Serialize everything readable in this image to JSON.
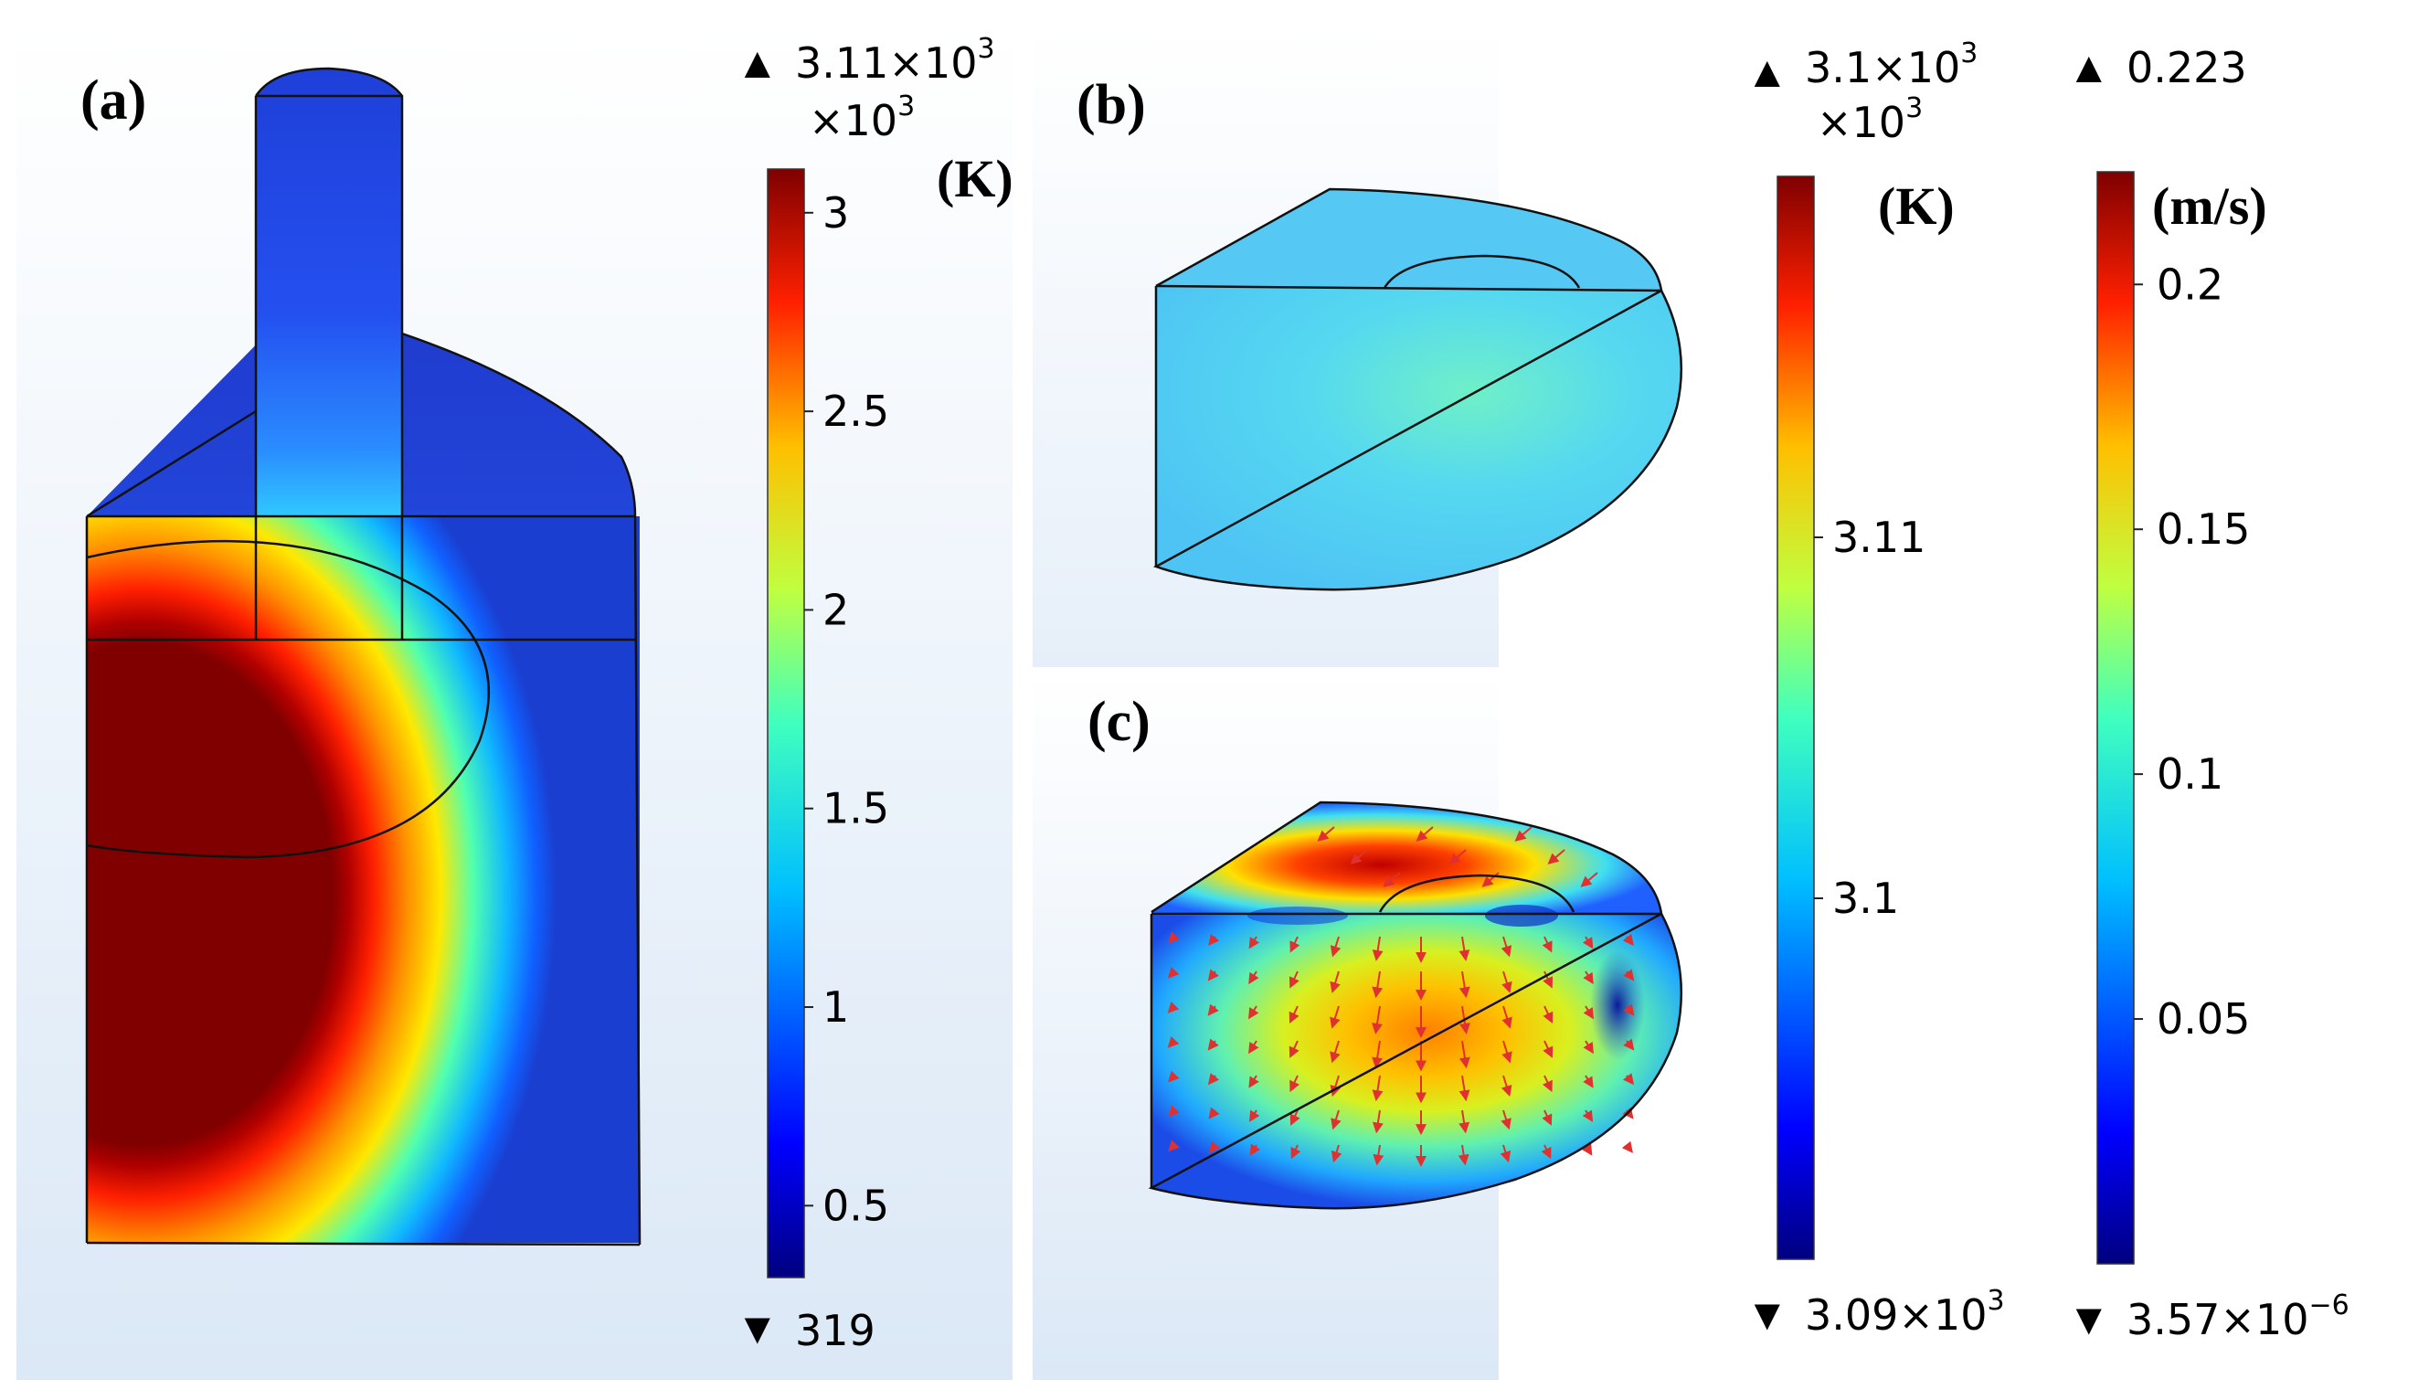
{
  "panels": {
    "a": {
      "label": "(a)"
    },
    "b": {
      "label": "(b)"
    },
    "c": {
      "label": "(c)"
    }
  },
  "colorbars": {
    "temperature_a": {
      "max_value": "3.11×10",
      "max_exp": "3",
      "multiplier": "×10",
      "multiplier_exp": "3",
      "unit": "(K)",
      "min_value": "319",
      "ticks": [
        "3",
        "2.5",
        "2",
        "1.5",
        "1",
        "0.5"
      ],
      "tick_values": [
        3,
        2.5,
        2,
        1.5,
        1,
        0.5
      ],
      "range": [
        0.319,
        3.11
      ]
    },
    "temperature_b": {
      "max_value": "3.1×10",
      "max_exp": "3",
      "multiplier": "×10",
      "multiplier_exp": "3",
      "unit": "(K)",
      "min_value": "3.09×10",
      "min_exp": "3",
      "ticks": [
        "3.11",
        "3.1"
      ],
      "tick_values": [
        3.11,
        3.1
      ],
      "range": [
        3.09,
        3.12
      ]
    },
    "velocity_c": {
      "max_value": "0.223",
      "unit": "(m/s)",
      "min_value": "3.57×10",
      "min_exp": "−6",
      "ticks": [
        "0.2",
        "0.15",
        "0.1",
        "0.05"
      ],
      "tick_values": [
        0.2,
        0.15,
        0.1,
        0.05
      ],
      "range": [
        0,
        0.223
      ]
    }
  },
  "colors": {
    "jet_scale": [
      "#00007f",
      "#0000ff",
      "#0080ff",
      "#00ffff",
      "#80ff80",
      "#ffff00",
      "#ff8000",
      "#ff0000",
      "#7f0000"
    ],
    "arrows": "#e03030"
  }
}
